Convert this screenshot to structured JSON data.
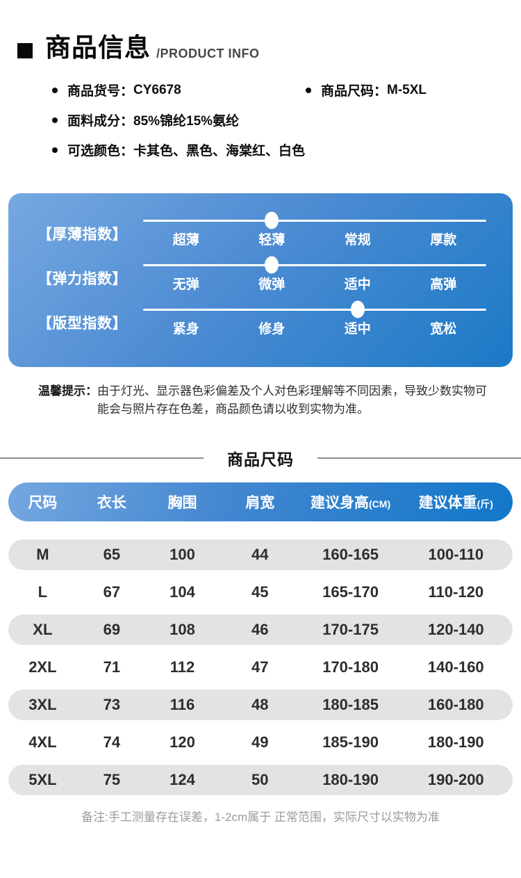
{
  "header": {
    "title": "商品信息",
    "subtitle": "/PRODUCT INFO"
  },
  "details": [
    {
      "label": "商品货号：",
      "value": "CY6678"
    },
    {
      "label": "商品尺码：",
      "value": "M-5XL"
    },
    {
      "label": "面料成分：",
      "value": "85%锦纶15%氨纶"
    },
    {
      "label": "可选颜色：",
      "value": "卡其色、黑色、海棠红、白色"
    }
  ],
  "index_panel": {
    "rows": [
      {
        "label": "【厚薄指数】",
        "options": [
          "超薄",
          "轻薄",
          "常规",
          "厚款"
        ],
        "selected": 1
      },
      {
        "label": "【弹力指数】",
        "options": [
          "无弹",
          "微弹",
          "适中",
          "高弹"
        ],
        "selected": 1
      },
      {
        "label": "【版型指数】",
        "options": [
          "紧身",
          "修身",
          "适中",
          "宽松"
        ],
        "selected": 2
      }
    ]
  },
  "notice": {
    "label": "温馨提示：",
    "text": "由于灯光、显示器色彩偏差及个人对色彩理解等不同因素，导致少数实物可能会与照片存在色差，商品颜色请以收到实物为准。"
  },
  "size_section": {
    "title": "商品尺码"
  },
  "size_table": {
    "columns": [
      {
        "label": "尺码",
        "unit": ""
      },
      {
        "label": "衣长",
        "unit": ""
      },
      {
        "label": "胸围",
        "unit": ""
      },
      {
        "label": "肩宽",
        "unit": ""
      },
      {
        "label": "建议身高",
        "unit": "(CM)"
      },
      {
        "label": "建议体重",
        "unit": "(斤)"
      }
    ],
    "rows": [
      [
        "M",
        "65",
        "100",
        "44",
        "160-165",
        "100-110"
      ],
      [
        "L",
        "67",
        "104",
        "45",
        "165-170",
        "110-120"
      ],
      [
        "XL",
        "69",
        "108",
        "46",
        "170-175",
        "120-140"
      ],
      [
        "2XL",
        "71",
        "112",
        "47",
        "170-180",
        "140-160"
      ],
      [
        "3XL",
        "73",
        "116",
        "48",
        "180-185",
        "160-180"
      ],
      [
        "4XL",
        "74",
        "120",
        "49",
        "185-190",
        "180-190"
      ],
      [
        "5XL",
        "75",
        "124",
        "50",
        "180-190",
        "190-200"
      ]
    ]
  },
  "footer_note": "备注:手工测量存在误差，1-2cm属于 正常范围，实际尺寸以实物为准",
  "colors": {
    "panel_gradient_start": "#76a8e1",
    "panel_gradient_end": "#1b79c6",
    "table_header_gradient_start": "#74a7e0",
    "table_header_gradient_end": "#1277c9",
    "row_stripe": "#e3e3e3",
    "divider_line": "#8f8f8f",
    "note_gray": "#9a9a9a"
  }
}
